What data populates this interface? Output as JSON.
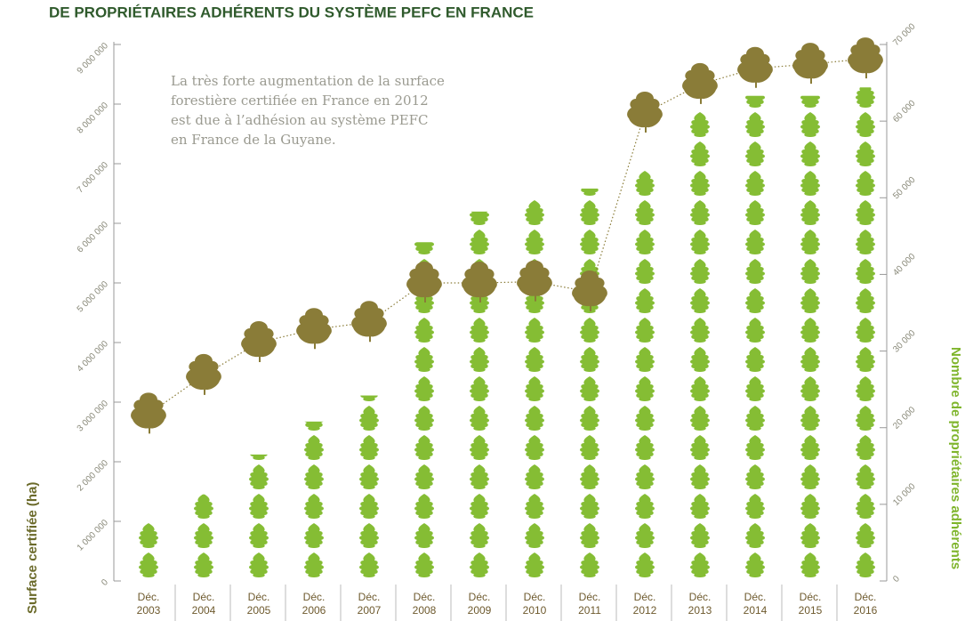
{
  "chart_data": {
    "type": "bar",
    "title": "DE PROPRIÉTAIRES ADHÉRENTS DU SYSTÈME PEFC EN FRANCE",
    "ylabel": "Surface certifiée (ha)",
    "y2label": "Nombre de propriétaires adhérents",
    "annotation": [
      "La très forte augmentation de la surface",
      "forestière certifiée en France en 2012",
      "est due à l’adhésion au système PEFC",
      "en France de la Guyane."
    ],
    "categories": [
      "Déc. 2003",
      "Déc. 2004",
      "Déc. 2005",
      "Déc. 2006",
      "Déc. 2007",
      "Déc. 2008",
      "Déc. 2009",
      "Déc. 2010",
      "Déc. 2011",
      "Déc. 2012",
      "Déc. 2013",
      "Déc. 2014",
      "Déc. 2015",
      "Déc. 2016"
    ],
    "series": [
      {
        "type": "bar",
        "marker": "oak-leaf-stack",
        "axis": "y2",
        "color": "#85bd34",
        "values": [
          7600,
          11300,
          16500,
          20800,
          24200,
          44200,
          48200,
          50000,
          51200,
          53700,
          61500,
          63300,
          63300,
          64400
        ]
      },
      {
        "type": "line",
        "marker": "tree",
        "axis": "y",
        "color": "#8a7c38",
        "values": [
          2800000,
          3450000,
          4000000,
          4220000,
          4340000,
          5000000,
          5000000,
          5020000,
          4850000,
          7850000,
          8330000,
          8600000,
          8670000,
          8760000
        ]
      }
    ],
    "ylim": [
      0,
      9000000
    ],
    "yticks": [
      0,
      {
        "value": 1000000,
        "label": "1 000 000"
      },
      {
        "value": 2000000,
        "label": "2 000 000"
      },
      {
        "value": 3000000,
        "label": "3 000 000"
      },
      {
        "value": 4000000,
        "label": "4 000 000"
      },
      {
        "value": 5000000,
        "label": "5 000 000"
      },
      {
        "value": 6000000,
        "label": "6 000 000"
      },
      {
        "value": 7000000,
        "label": "7 000 000"
      },
      {
        "value": 8000000,
        "label": "8 000 000"
      },
      {
        "value": 9000000,
        "label": "9 000 000"
      }
    ],
    "y2lim": [
      0,
      70000
    ],
    "y2ticks": [
      0,
      {
        "value": 10000,
        "label": "10 000"
      },
      {
        "value": 20000,
        "label": "20 000"
      },
      {
        "value": 30000,
        "label": "30 000"
      },
      {
        "value": 40000,
        "label": "40 000"
      },
      {
        "value": 50000,
        "label": "50 000"
      },
      {
        "value": 60000,
        "label": "60 000"
      },
      {
        "value": 70000,
        "label": "70 000"
      }
    ]
  }
}
